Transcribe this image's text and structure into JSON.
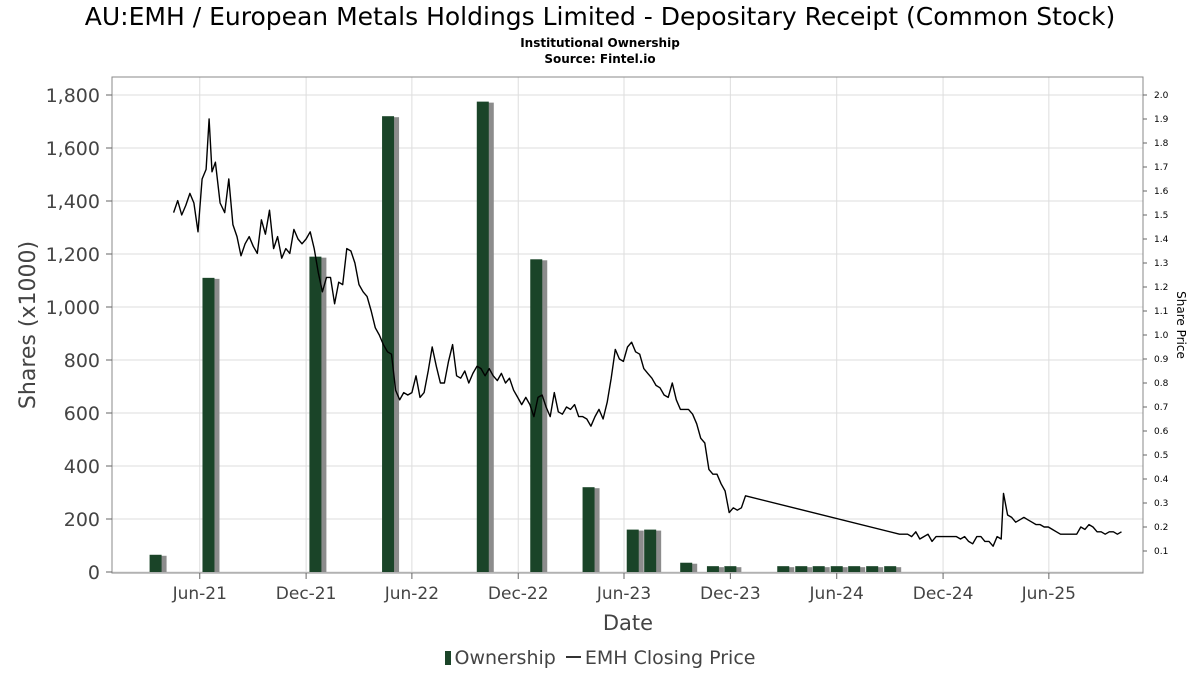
{
  "title": "AU:EMH / European Metals Holdings Limited - Depositary Receipt (Common Stock)",
  "subtitle": "Institutional Ownership",
  "source": "Source: Fintel.io",
  "colors": {
    "bar": "#1a4428",
    "bar_shadow": "#8c8c8c",
    "line": "#000000",
    "grid": "#dddddd",
    "frame": "#888888"
  },
  "legend": {
    "ownership": "Ownership",
    "price": "EMH Closing Price"
  },
  "chart_data": {
    "type": "bar+line",
    "xlabel": "Date",
    "ylabel": "Shares (x1000)",
    "y2label": "Share Price",
    "x_ticks": [
      "Jun-21",
      "Dec-21",
      "Jun-22",
      "Dec-22",
      "Jun-23",
      "Dec-23",
      "Jun-24",
      "Dec-24",
      "Jun-25"
    ],
    "y_ticks": [
      "0",
      "200",
      "400",
      "600",
      "800",
      "1,000",
      "1,200",
      "1,400",
      "1,600",
      "1,800"
    ],
    "y2_ticks": [
      "0.1",
      "0.2",
      "0.3",
      "0.4",
      "0.5",
      "0.6",
      "0.7",
      "0.8",
      "0.9",
      "1.0",
      "1.1",
      "1.2",
      "1.3",
      "1.4",
      "1.5",
      "1.6",
      "1.7",
      "1.8",
      "1.9",
      "2.0"
    ],
    "ylim": [
      0,
      1800
    ],
    "y2lim": [
      0.1,
      2.0
    ],
    "xlim": [
      "2021-01-15",
      "2025-11-24"
    ],
    "ownership": [
      {
        "date": "2021-03-31",
        "value": 65
      },
      {
        "date": "2021-06-30",
        "value": 1110
      },
      {
        "date": "2021-12-31",
        "value": 1190
      },
      {
        "date": "2022-05-05",
        "value": 1720
      },
      {
        "date": "2022-10-15",
        "value": 1775
      },
      {
        "date": "2023-01-15",
        "value": 1180
      },
      {
        "date": "2023-04-15",
        "value": 320
      },
      {
        "date": "2023-06-30",
        "value": 160
      },
      {
        "date": "2023-07-30",
        "value": 160
      },
      {
        "date": "2023-09-30",
        "value": 35
      },
      {
        "date": "2023-11-15",
        "value": 22
      },
      {
        "date": "2023-12-15",
        "value": 22
      },
      {
        "date": "2024-03-15",
        "value": 22
      },
      {
        "date": "2024-04-15",
        "value": 22
      },
      {
        "date": "2024-05-15",
        "value": 22
      },
      {
        "date": "2024-06-15",
        "value": 22
      },
      {
        "date": "2024-07-15",
        "value": 22
      },
      {
        "date": "2024-08-15",
        "value": 22
      },
      {
        "date": "2024-09-15",
        "value": 22
      }
    ],
    "price": [
      [
        "2021-05-01",
        1.51
      ],
      [
        "2021-05-08",
        1.56
      ],
      [
        "2021-05-15",
        1.5
      ],
      [
        "2021-05-22",
        1.54
      ],
      [
        "2021-05-29",
        1.59
      ],
      [
        "2021-06-05",
        1.55
      ],
      [
        "2021-06-12",
        1.43
      ],
      [
        "2021-06-19",
        1.65
      ],
      [
        "2021-06-26",
        1.69
      ],
      [
        "2021-07-01",
        1.9
      ],
      [
        "2021-07-06",
        1.68
      ],
      [
        "2021-07-12",
        1.72
      ],
      [
        "2021-07-20",
        1.55
      ],
      [
        "2021-07-28",
        1.51
      ],
      [
        "2021-08-04",
        1.65
      ],
      [
        "2021-08-11",
        1.46
      ],
      [
        "2021-08-18",
        1.41
      ],
      [
        "2021-08-25",
        1.33
      ],
      [
        "2021-09-01",
        1.38
      ],
      [
        "2021-09-08",
        1.41
      ],
      [
        "2021-09-15",
        1.37
      ],
      [
        "2021-09-22",
        1.34
      ],
      [
        "2021-09-29",
        1.48
      ],
      [
        "2021-10-06",
        1.42
      ],
      [
        "2021-10-13",
        1.52
      ],
      [
        "2021-10-20",
        1.36
      ],
      [
        "2021-10-27",
        1.41
      ],
      [
        "2021-11-03",
        1.32
      ],
      [
        "2021-11-10",
        1.36
      ],
      [
        "2021-11-17",
        1.34
      ],
      [
        "2021-11-24",
        1.44
      ],
      [
        "2021-12-01",
        1.4
      ],
      [
        "2021-12-08",
        1.38
      ],
      [
        "2021-12-15",
        1.4
      ],
      [
        "2021-12-22",
        1.43
      ],
      [
        "2021-12-29",
        1.36
      ],
      [
        "2022-01-05",
        1.26
      ],
      [
        "2022-01-12",
        1.18
      ],
      [
        "2022-01-19",
        1.24
      ],
      [
        "2022-01-26",
        1.24
      ],
      [
        "2022-02-02",
        1.13
      ],
      [
        "2022-02-09",
        1.22
      ],
      [
        "2022-02-16",
        1.21
      ],
      [
        "2022-02-23",
        1.36
      ],
      [
        "2022-03-02",
        1.35
      ],
      [
        "2022-03-09",
        1.3
      ],
      [
        "2022-03-16",
        1.21
      ],
      [
        "2022-03-23",
        1.18
      ],
      [
        "2022-03-30",
        1.16
      ],
      [
        "2022-04-06",
        1.1
      ],
      [
        "2022-04-13",
        1.03
      ],
      [
        "2022-04-20",
        1.0
      ],
      [
        "2022-04-27",
        0.96
      ],
      [
        "2022-05-04",
        0.93
      ],
      [
        "2022-05-11",
        0.92
      ],
      [
        "2022-05-18",
        0.77
      ],
      [
        "2022-05-25",
        0.73
      ],
      [
        "2022-06-01",
        0.76
      ],
      [
        "2022-06-08",
        0.75
      ],
      [
        "2022-06-15",
        0.76
      ],
      [
        "2022-06-22",
        0.83
      ],
      [
        "2022-06-29",
        0.74
      ],
      [
        "2022-07-06",
        0.76
      ],
      [
        "2022-07-13",
        0.85
      ],
      [
        "2022-07-20",
        0.95
      ],
      [
        "2022-07-27",
        0.87
      ],
      [
        "2022-08-03",
        0.8
      ],
      [
        "2022-08-10",
        0.8
      ],
      [
        "2022-08-17",
        0.89
      ],
      [
        "2022-08-24",
        0.96
      ],
      [
        "2022-08-31",
        0.83
      ],
      [
        "2022-09-07",
        0.82
      ],
      [
        "2022-09-14",
        0.85
      ],
      [
        "2022-09-21",
        0.8
      ],
      [
        "2022-09-28",
        0.84
      ],
      [
        "2022-10-05",
        0.87
      ],
      [
        "2022-10-12",
        0.86
      ],
      [
        "2022-10-19",
        0.83
      ],
      [
        "2022-10-26",
        0.86
      ],
      [
        "2022-11-02",
        0.83
      ],
      [
        "2022-11-09",
        0.81
      ],
      [
        "2022-11-16",
        0.84
      ],
      [
        "2022-11-23",
        0.8
      ],
      [
        "2022-11-30",
        0.82
      ],
      [
        "2022-12-07",
        0.77
      ],
      [
        "2022-12-14",
        0.74
      ],
      [
        "2022-12-21",
        0.71
      ],
      [
        "2022-12-28",
        0.74
      ],
      [
        "2023-01-04",
        0.71
      ],
      [
        "2023-01-11",
        0.66
      ],
      [
        "2023-01-18",
        0.74
      ],
      [
        "2023-01-25",
        0.75
      ],
      [
        "2023-02-01",
        0.7
      ],
      [
        "2023-02-08",
        0.66
      ],
      [
        "2023-02-15",
        0.76
      ],
      [
        "2023-02-22",
        0.68
      ],
      [
        "2023-03-01",
        0.67
      ],
      [
        "2023-03-08",
        0.7
      ],
      [
        "2023-03-15",
        0.69
      ],
      [
        "2023-03-22",
        0.71
      ],
      [
        "2023-03-29",
        0.66
      ],
      [
        "2023-04-05",
        0.66
      ],
      [
        "2023-04-12",
        0.65
      ],
      [
        "2023-04-19",
        0.62
      ],
      [
        "2023-04-26",
        0.66
      ],
      [
        "2023-05-03",
        0.69
      ],
      [
        "2023-05-10",
        0.65
      ],
      [
        "2023-05-17",
        0.72
      ],
      [
        "2023-05-24",
        0.82
      ],
      [
        "2023-05-31",
        0.94
      ],
      [
        "2023-06-07",
        0.9
      ],
      [
        "2023-06-14",
        0.89
      ],
      [
        "2023-06-21",
        0.95
      ],
      [
        "2023-06-28",
        0.97
      ],
      [
        "2023-07-05",
        0.93
      ],
      [
        "2023-07-12",
        0.92
      ],
      [
        "2023-07-19",
        0.86
      ],
      [
        "2023-07-26",
        0.84
      ],
      [
        "2023-08-02",
        0.82
      ],
      [
        "2023-08-09",
        0.79
      ],
      [
        "2023-08-16",
        0.78
      ],
      [
        "2023-08-23",
        0.75
      ],
      [
        "2023-08-30",
        0.74
      ],
      [
        "2023-09-06",
        0.8
      ],
      [
        "2023-09-13",
        0.73
      ],
      [
        "2023-09-20",
        0.69
      ],
      [
        "2023-09-27",
        0.69
      ],
      [
        "2023-10-04",
        0.69
      ],
      [
        "2023-10-11",
        0.67
      ],
      [
        "2023-10-18",
        0.63
      ],
      [
        "2023-10-25",
        0.57
      ],
      [
        "2023-11-01",
        0.55
      ],
      [
        "2023-11-08",
        0.44
      ],
      [
        "2023-11-15",
        0.42
      ],
      [
        "2023-11-22",
        0.42
      ],
      [
        "2023-11-29",
        0.38
      ],
      [
        "2023-12-06",
        0.35
      ],
      [
        "2023-12-13",
        0.26
      ],
      [
        "2023-12-20",
        0.28
      ],
      [
        "2023-12-27",
        0.27
      ],
      [
        "2024-01-03",
        0.28
      ],
      [
        "2024-01-10",
        0.33
      ],
      [
        "2024-10-01",
        0.17
      ],
      [
        "2024-10-08",
        0.17
      ],
      [
        "2024-10-15",
        0.17
      ],
      [
        "2024-10-22",
        0.16
      ],
      [
        "2024-10-29",
        0.18
      ],
      [
        "2024-11-05",
        0.15
      ],
      [
        "2024-11-12",
        0.16
      ],
      [
        "2024-11-19",
        0.17
      ],
      [
        "2024-11-26",
        0.14
      ],
      [
        "2024-12-03",
        0.16
      ],
      [
        "2024-12-10",
        0.16
      ],
      [
        "2024-12-17",
        0.16
      ],
      [
        "2024-12-24",
        0.16
      ],
      [
        "2024-12-31",
        0.16
      ],
      [
        "2025-01-07",
        0.16
      ],
      [
        "2025-01-14",
        0.15
      ],
      [
        "2025-01-21",
        0.16
      ],
      [
        "2025-01-28",
        0.14
      ],
      [
        "2025-02-04",
        0.13
      ],
      [
        "2025-02-11",
        0.16
      ],
      [
        "2025-02-18",
        0.16
      ],
      [
        "2025-02-25",
        0.14
      ],
      [
        "2025-03-04",
        0.14
      ],
      [
        "2025-03-11",
        0.12
      ],
      [
        "2025-03-18",
        0.16
      ],
      [
        "2025-03-25",
        0.15
      ],
      [
        "2025-03-29",
        0.34
      ],
      [
        "2025-04-05",
        0.25
      ],
      [
        "2025-04-12",
        0.24
      ],
      [
        "2025-04-19",
        0.22
      ],
      [
        "2025-04-26",
        0.23
      ],
      [
        "2025-05-03",
        0.24
      ],
      [
        "2025-05-10",
        0.23
      ],
      [
        "2025-05-17",
        0.22
      ],
      [
        "2025-05-24",
        0.21
      ],
      [
        "2025-05-31",
        0.21
      ],
      [
        "2025-06-07",
        0.2
      ],
      [
        "2025-06-14",
        0.2
      ],
      [
        "2025-06-21",
        0.19
      ],
      [
        "2025-06-28",
        0.18
      ],
      [
        "2025-07-05",
        0.17
      ],
      [
        "2025-07-12",
        0.17
      ],
      [
        "2025-07-19",
        0.17
      ],
      [
        "2025-07-26",
        0.17
      ],
      [
        "2025-08-02",
        0.17
      ],
      [
        "2025-08-09",
        0.2
      ],
      [
        "2025-08-16",
        0.19
      ],
      [
        "2025-08-23",
        0.21
      ],
      [
        "2025-08-30",
        0.2
      ],
      [
        "2025-09-06",
        0.18
      ],
      [
        "2025-09-13",
        0.18
      ],
      [
        "2025-09-20",
        0.17
      ],
      [
        "2025-09-27",
        0.18
      ],
      [
        "2025-10-04",
        0.18
      ],
      [
        "2025-10-11",
        0.17
      ],
      [
        "2025-10-18",
        0.18
      ]
    ]
  }
}
